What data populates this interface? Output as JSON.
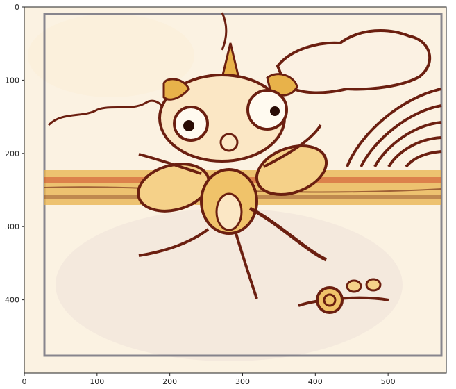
{
  "figure": {
    "x_ticks": [
      "0",
      "100",
      "200",
      "300",
      "400",
      "500"
    ],
    "y_ticks": [
      "0",
      "100",
      "200",
      "300",
      "400"
    ],
    "x_limits": [
      0,
      580
    ],
    "y_limits_top_to_bottom": [
      0,
      500
    ],
    "image_description_tag": "stylized drawing: creature with horn, wings, clouds, rainbow, snail",
    "colors": {
      "paper": "#f7efe0",
      "ink": "#6b1f10",
      "gold": "#e8b24a",
      "red": "#c8321e",
      "frame": "#606070"
    }
  }
}
